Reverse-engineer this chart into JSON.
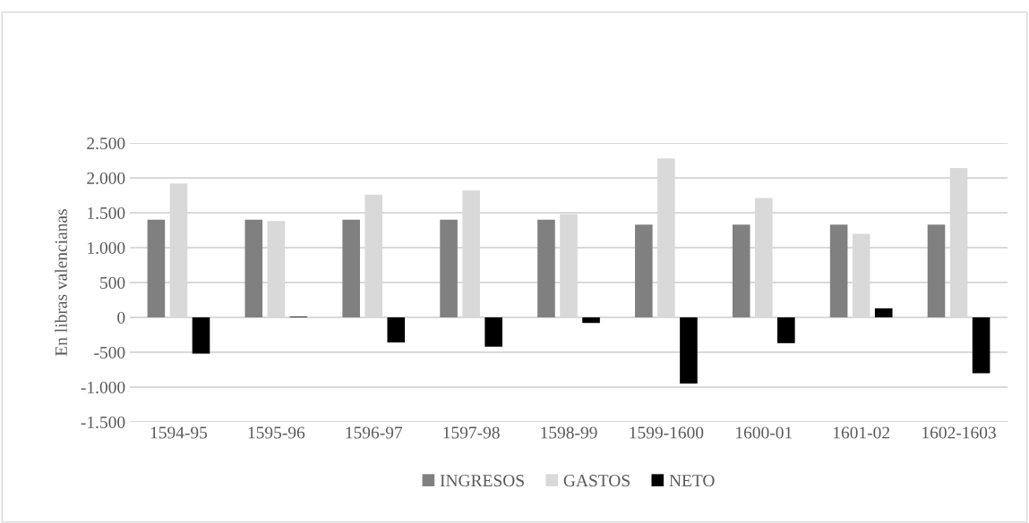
{
  "chart_data": {
    "type": "bar",
    "ylabel": "En libras valencianas",
    "categories": [
      "1594-95",
      "1595-96",
      "1596-97",
      "1597-98",
      "1598-99",
      "1599-1600",
      "1600-01",
      "1601-02",
      "1602-1603"
    ],
    "series": [
      {
        "name": "INGRESOS",
        "color": "#808080",
        "values": [
          1400,
          1400,
          1400,
          1400,
          1400,
          1330,
          1330,
          1330,
          1330
        ]
      },
      {
        "name": "GASTOS",
        "color": "#d9d9d9",
        "values": [
          1920,
          1380,
          1760,
          1820,
          1480,
          2280,
          1710,
          1200,
          2140
        ]
      },
      {
        "name": "NETO",
        "color": "#000000",
        "values": [
          -520,
          10,
          -360,
          -420,
          -80,
          -950,
          -370,
          130,
          -800
        ]
      }
    ],
    "ylim": [
      -1500,
      2500
    ],
    "yticks": [
      {
        "value": -1500,
        "label": "-1.500"
      },
      {
        "value": -1000,
        "label": "-1.000"
      },
      {
        "value": -500,
        "label": "-500"
      },
      {
        "value": 0,
        "label": "0"
      },
      {
        "value": 500,
        "label": "500"
      },
      {
        "value": 1000,
        "label": "1.000"
      },
      {
        "value": 1500,
        "label": "1.500"
      },
      {
        "value": 2000,
        "label": "2.000"
      },
      {
        "value": 2500,
        "label": "2.500"
      }
    ],
    "grid": "y",
    "legend": "bottom"
  }
}
